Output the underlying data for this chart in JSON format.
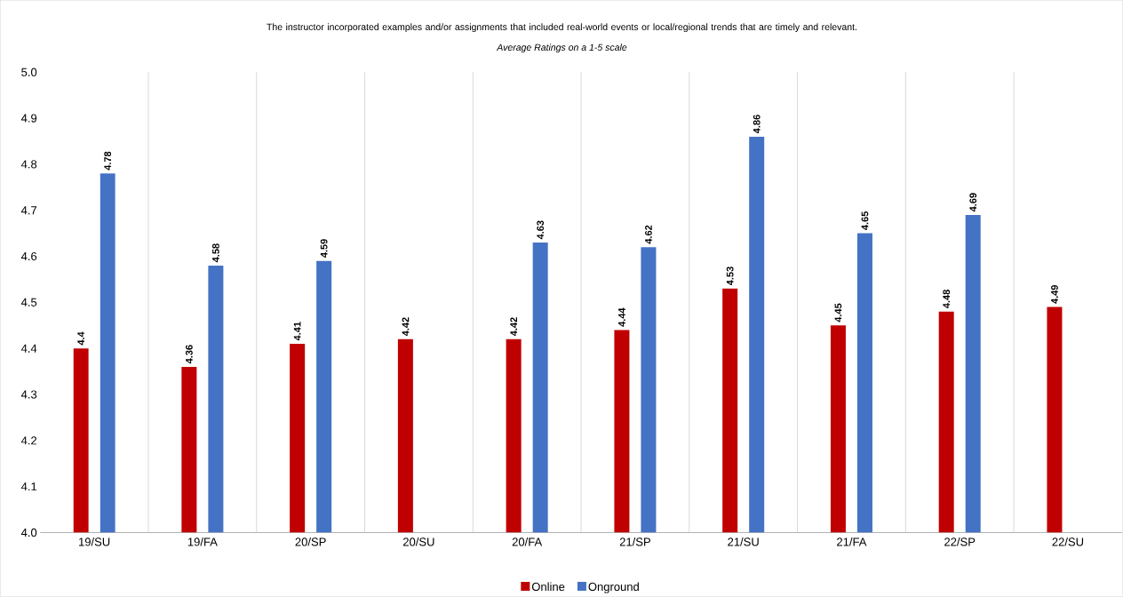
{
  "chart_data": {
    "type": "bar",
    "title": "The instructor incorporated examples and/or assignments that included real-world events or local/regional trends that are timely and relevant.",
    "subtitle": "*Average Ratings on a 1-5 scale*",
    "categories": [
      "19/SU",
      "19/FA",
      "20/SP",
      "20/SU",
      "20/FA",
      "21/SP",
      "21/SU",
      "21/FA",
      "22/SP",
      "22/SU"
    ],
    "series": [
      {
        "name": "Online",
        "color": "#c00000",
        "values": [
          4.4,
          4.36,
          4.41,
          4.42,
          4.42,
          4.44,
          4.53,
          4.45,
          4.48,
          4.49
        ]
      },
      {
        "name": "Onground",
        "color": "#4472c4",
        "values": [
          4.78,
          4.58,
          4.59,
          null,
          4.63,
          4.62,
          4.86,
          4.65,
          4.69,
          null
        ]
      }
    ],
    "ylim": [
      4,
      5
    ],
    "yticks": [
      {
        "value": 4,
        "label": "4.0"
      },
      4.1,
      4.2,
      4.3,
      4.4,
      4.5,
      4.6,
      4.7,
      4.8,
      4.9,
      {
        "value": 5,
        "label": "5.0"
      }
    ],
    "grid": "x",
    "legend": "bottom",
    "data_labels": true
  }
}
